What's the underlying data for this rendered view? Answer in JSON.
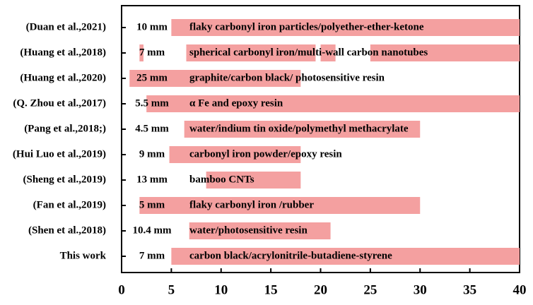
{
  "chart_data": {
    "type": "range-bar",
    "color": "#f4a0a0",
    "xlim": [
      0,
      40
    ],
    "xticks": [
      0,
      5,
      10,
      15,
      20,
      25,
      30,
      35,
      40
    ],
    "rows": [
      {
        "label": "(Duan et al.,2021)",
        "thickness": "10 mm",
        "material": "flaky carbonyl iron particles/polyether-ether-ketone",
        "ranges": [
          [
            5,
            40
          ]
        ]
      },
      {
        "label": "(Huang et al.,2018)",
        "thickness": "7  mm",
        "material": "spherical carbonyl iron/multi-wall carbon nanotubes",
        "ranges": [
          [
            1.8,
            2.2
          ],
          [
            6.5,
            19.5
          ],
          [
            20,
            21.5
          ],
          [
            25,
            40
          ]
        ]
      },
      {
        "label": "(Huang et al.,2020)",
        "thickness": "25 mm",
        "material": "graphite/carbon black/ photosensitive resin",
        "ranges": [
          [
            0.8,
            18
          ]
        ]
      },
      {
        "label": "(Q. Zhou et al.,2017)",
        "thickness": "5.5 mm",
        "material": "α Fe and epoxy resin",
        "ranges": [
          [
            2.5,
            40
          ]
        ]
      },
      {
        "label": "(Pang et al.,2018;)",
        "thickness": "4.5 mm",
        "material": "water/indium tin oxide/polymethyl methacrylate",
        "ranges": [
          [
            6.3,
            30
          ]
        ]
      },
      {
        "label": "(Hui Luo et al.,2019)",
        "thickness": "9  mm",
        "material": "carbonyl iron powder/epoxy resin",
        "ranges": [
          [
            4.8,
            18
          ]
        ]
      },
      {
        "label": "(Sheng et al.,2019)",
        "thickness": "13 mm",
        "material": "bamboo CNTs",
        "ranges": [
          [
            8.5,
            18
          ]
        ]
      },
      {
        "label": "(Fan et al.,2019)",
        "thickness": "5  mm",
        "material": "flaky carbonyl iron /rubber",
        "ranges": [
          [
            1.8,
            30
          ]
        ]
      },
      {
        "label": "(Shen et al.,2018)",
        "thickness": "10.4 mm",
        "material": "water/photosensitive resin",
        "ranges": [
          [
            6.8,
            21
          ]
        ]
      },
      {
        "label": "This work",
        "thickness": "7  mm",
        "material": "carbon black/acrylonitrile-butadiene-styrene",
        "ranges": [
          [
            5,
            40
          ]
        ]
      }
    ]
  }
}
